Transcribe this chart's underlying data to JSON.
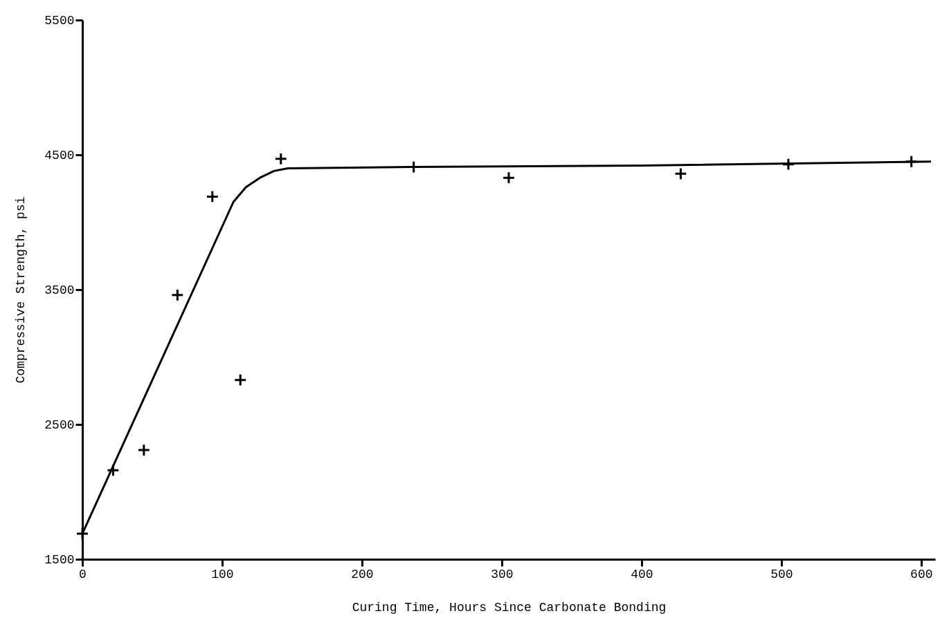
{
  "chart_data": {
    "type": "scatter",
    "xlabel": "Curing Time, Hours Since Carbonate Bonding",
    "ylabel": "Compressive Strength, psi",
    "xlim": [
      0,
      610
    ],
    "ylim": [
      1500,
      5500
    ],
    "xticks": [
      0,
      100,
      200,
      300,
      400,
      500,
      600
    ],
    "yticks": [
      1500,
      2500,
      3500,
      4500,
      5500
    ],
    "grid": false,
    "series": [
      {
        "color": "#000000",
        "marker": "cross",
        "x": [
          0,
          22,
          44,
          68,
          93,
          113,
          142,
          237,
          305,
          428,
          505,
          593
        ],
        "values": [
          1690,
          2160,
          2310,
          3460,
          4190,
          2830,
          4470,
          4410,
          4330,
          4360,
          4430,
          4450
        ]
      },
      {
        "type": "line",
        "color": "#000000",
        "marker": "none",
        "line_style": "solid",
        "x": [
          0,
          108,
          117,
          127,
          137,
          147,
          236,
          400,
          607
        ],
        "values": [
          1690,
          4150,
          4260,
          4330,
          4380,
          4400,
          4410,
          4420,
          4450
        ]
      }
    ]
  }
}
